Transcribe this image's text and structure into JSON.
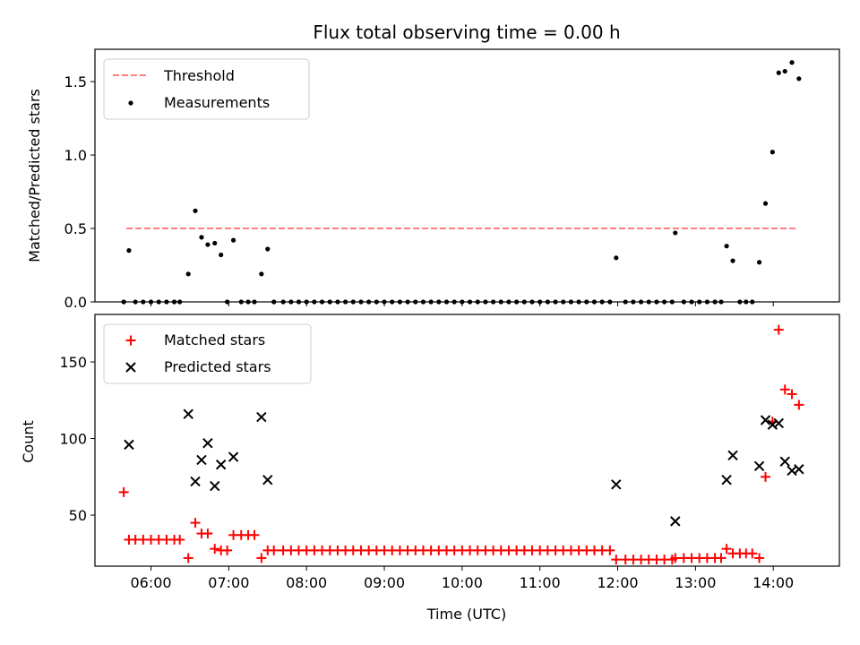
{
  "chart_data": [
    {
      "type": "scatter",
      "title": "Flux total observing time = 0.00 h",
      "ylabel": "Matched/Predicted stars",
      "ylim": [
        0,
        1.72
      ],
      "yticks": [
        0.0,
        0.5,
        1.0,
        1.5
      ],
      "ytick_labels": [
        "0.0",
        "0.5",
        "1.0",
        "1.5"
      ],
      "legend": {
        "position": "top-left"
      },
      "threshold": {
        "name": "Threshold",
        "value": 0.5,
        "x_start": 5.683,
        "x_end": 14.317,
        "color": "#ff7f7f",
        "style": "dashed"
      },
      "series": [
        {
          "name": "Measurements",
          "marker": "dot",
          "color": "#000000",
          "points": [
            [
              5.65,
              0
            ],
            [
              5.717,
              0.35
            ],
            [
              5.8,
              0
            ],
            [
              5.9,
              0
            ],
            [
              6.0,
              0
            ],
            [
              6.1,
              0
            ],
            [
              6.2,
              0
            ],
            [
              6.3,
              0
            ],
            [
              6.37,
              0
            ],
            [
              6.48,
              0.19
            ],
            [
              6.57,
              0.62
            ],
            [
              6.65,
              0.44
            ],
            [
              6.73,
              0.39
            ],
            [
              6.82,
              0.4
            ],
            [
              6.9,
              0.32
            ],
            [
              6.98,
              0
            ],
            [
              7.06,
              0.42
            ],
            [
              7.16,
              0
            ],
            [
              7.25,
              0
            ],
            [
              7.33,
              0
            ],
            [
              7.42,
              0.19
            ],
            [
              7.5,
              0.36
            ],
            [
              7.58,
              0
            ],
            [
              7.7,
              0
            ],
            [
              7.8,
              0
            ],
            [
              7.9,
              0
            ],
            [
              8.0,
              0
            ],
            [
              8.1,
              0
            ],
            [
              8.2,
              0
            ],
            [
              8.3,
              0
            ],
            [
              8.4,
              0
            ],
            [
              8.5,
              0
            ],
            [
              8.6,
              0
            ],
            [
              8.7,
              0
            ],
            [
              8.8,
              0
            ],
            [
              8.9,
              0
            ],
            [
              9.0,
              0
            ],
            [
              9.1,
              0
            ],
            [
              9.2,
              0
            ],
            [
              9.3,
              0
            ],
            [
              9.4,
              0
            ],
            [
              9.5,
              0
            ],
            [
              9.6,
              0
            ],
            [
              9.7,
              0
            ],
            [
              9.8,
              0
            ],
            [
              9.9,
              0
            ],
            [
              10.0,
              0
            ],
            [
              10.1,
              0
            ],
            [
              10.2,
              0
            ],
            [
              10.3,
              0
            ],
            [
              10.4,
              0
            ],
            [
              10.5,
              0
            ],
            [
              10.6,
              0
            ],
            [
              10.7,
              0
            ],
            [
              10.8,
              0
            ],
            [
              10.9,
              0
            ],
            [
              11.0,
              0
            ],
            [
              11.1,
              0
            ],
            [
              11.2,
              0
            ],
            [
              11.3,
              0
            ],
            [
              11.4,
              0
            ],
            [
              11.5,
              0
            ],
            [
              11.6,
              0
            ],
            [
              11.7,
              0
            ],
            [
              11.8,
              0
            ],
            [
              11.9,
              0
            ],
            [
              11.98,
              0.3
            ],
            [
              12.1,
              0
            ],
            [
              12.2,
              0
            ],
            [
              12.3,
              0
            ],
            [
              12.4,
              0
            ],
            [
              12.5,
              0
            ],
            [
              12.6,
              0
            ],
            [
              12.7,
              0
            ],
            [
              12.74,
              0.47
            ],
            [
              12.85,
              0
            ],
            [
              12.95,
              0
            ],
            [
              13.05,
              0
            ],
            [
              13.15,
              0
            ],
            [
              13.25,
              0
            ],
            [
              13.33,
              0
            ],
            [
              13.4,
              0.38
            ],
            [
              13.48,
              0.28
            ],
            [
              13.57,
              0
            ],
            [
              13.65,
              0
            ],
            [
              13.73,
              0
            ],
            [
              13.82,
              0.27
            ],
            [
              13.9,
              0.67
            ],
            [
              13.99,
              1.02
            ],
            [
              14.07,
              1.56
            ],
            [
              14.15,
              1.57
            ],
            [
              14.24,
              1.63
            ],
            [
              14.33,
              1.52
            ]
          ]
        }
      ]
    },
    {
      "type": "scatter",
      "xlabel": "Time (UTC)",
      "ylabel": "Count",
      "xlim": [
        5.28,
        14.85
      ],
      "ylim": [
        16.7,
        181
      ],
      "xticks": [
        6,
        7,
        8,
        9,
        10,
        11,
        12,
        13,
        14
      ],
      "xtick_labels": [
        "06:00",
        "07:00",
        "08:00",
        "09:00",
        "10:00",
        "11:00",
        "12:00",
        "13:00",
        "14:00"
      ],
      "yticks": [
        50,
        100,
        150
      ],
      "ytick_labels": [
        "50",
        "100",
        "150"
      ],
      "legend": {
        "position": "top-left"
      },
      "series": [
        {
          "name": "Matched stars",
          "marker": "+",
          "color": "#ff0000",
          "points": [
            [
              5.65,
              65
            ],
            [
              5.717,
              34
            ],
            [
              5.8,
              34
            ],
            [
              5.9,
              34
            ],
            [
              6.0,
              34
            ],
            [
              6.1,
              34
            ],
            [
              6.2,
              34
            ],
            [
              6.3,
              34
            ],
            [
              6.37,
              34
            ],
            [
              6.48,
              22
            ],
            [
              6.57,
              45
            ],
            [
              6.65,
              38
            ],
            [
              6.73,
              38
            ],
            [
              6.82,
              28
            ],
            [
              6.9,
              27
            ],
            [
              6.98,
              27
            ],
            [
              7.06,
              37
            ],
            [
              7.16,
              37
            ],
            [
              7.25,
              37
            ],
            [
              7.33,
              37
            ],
            [
              7.42,
              22
            ],
            [
              7.5,
              27
            ],
            [
              7.58,
              27
            ],
            [
              7.7,
              27
            ],
            [
              7.8,
              27
            ],
            [
              7.9,
              27
            ],
            [
              8.0,
              27
            ],
            [
              8.1,
              27
            ],
            [
              8.2,
              27
            ],
            [
              8.3,
              27
            ],
            [
              8.4,
              27
            ],
            [
              8.5,
              27
            ],
            [
              8.6,
              27
            ],
            [
              8.7,
              27
            ],
            [
              8.8,
              27
            ],
            [
              8.9,
              27
            ],
            [
              9.0,
              27
            ],
            [
              9.1,
              27
            ],
            [
              9.2,
              27
            ],
            [
              9.3,
              27
            ],
            [
              9.4,
              27
            ],
            [
              9.5,
              27
            ],
            [
              9.6,
              27
            ],
            [
              9.7,
              27
            ],
            [
              9.8,
              27
            ],
            [
              9.9,
              27
            ],
            [
              10.0,
              27
            ],
            [
              10.1,
              27
            ],
            [
              10.2,
              27
            ],
            [
              10.3,
              27
            ],
            [
              10.4,
              27
            ],
            [
              10.5,
              27
            ],
            [
              10.6,
              27
            ],
            [
              10.7,
              27
            ],
            [
              10.8,
              27
            ],
            [
              10.9,
              27
            ],
            [
              11.0,
              27
            ],
            [
              11.1,
              27
            ],
            [
              11.2,
              27
            ],
            [
              11.3,
              27
            ],
            [
              11.4,
              27
            ],
            [
              11.5,
              27
            ],
            [
              11.6,
              27
            ],
            [
              11.7,
              27
            ],
            [
              11.8,
              27
            ],
            [
              11.9,
              27
            ],
            [
              11.98,
              21
            ],
            [
              12.1,
              21
            ],
            [
              12.2,
              21
            ],
            [
              12.3,
              21
            ],
            [
              12.4,
              21
            ],
            [
              12.5,
              21
            ],
            [
              12.6,
              21
            ],
            [
              12.7,
              21
            ],
            [
              12.74,
              22
            ],
            [
              12.85,
              22
            ],
            [
              12.95,
              22
            ],
            [
              13.05,
              22
            ],
            [
              13.15,
              22
            ],
            [
              13.25,
              22
            ],
            [
              13.33,
              22
            ],
            [
              13.4,
              28
            ],
            [
              13.48,
              25
            ],
            [
              13.57,
              25
            ],
            [
              13.65,
              25
            ],
            [
              13.73,
              25
            ],
            [
              13.82,
              22
            ],
            [
              13.9,
              75
            ],
            [
              13.99,
              111
            ],
            [
              14.07,
              171
            ],
            [
              14.15,
              132
            ],
            [
              14.24,
              129
            ],
            [
              14.33,
              122
            ]
          ]
        },
        {
          "name": "Predicted stars",
          "marker": "x",
          "color": "#000000",
          "points": [
            [
              5.717,
              96
            ],
            [
              6.48,
              116
            ],
            [
              6.57,
              72
            ],
            [
              6.65,
              86
            ],
            [
              6.73,
              97
            ],
            [
              6.82,
              69
            ],
            [
              6.9,
              83
            ],
            [
              7.06,
              88
            ],
            [
              7.42,
              114
            ],
            [
              7.5,
              73
            ],
            [
              11.98,
              70
            ],
            [
              12.74,
              46
            ],
            [
              13.4,
              73
            ],
            [
              13.48,
              89
            ],
            [
              13.82,
              82
            ],
            [
              13.9,
              112
            ],
            [
              13.99,
              109
            ],
            [
              14.07,
              110
            ],
            [
              14.15,
              85
            ],
            [
              14.24,
              79
            ],
            [
              14.33,
              80
            ]
          ]
        }
      ]
    }
  ]
}
